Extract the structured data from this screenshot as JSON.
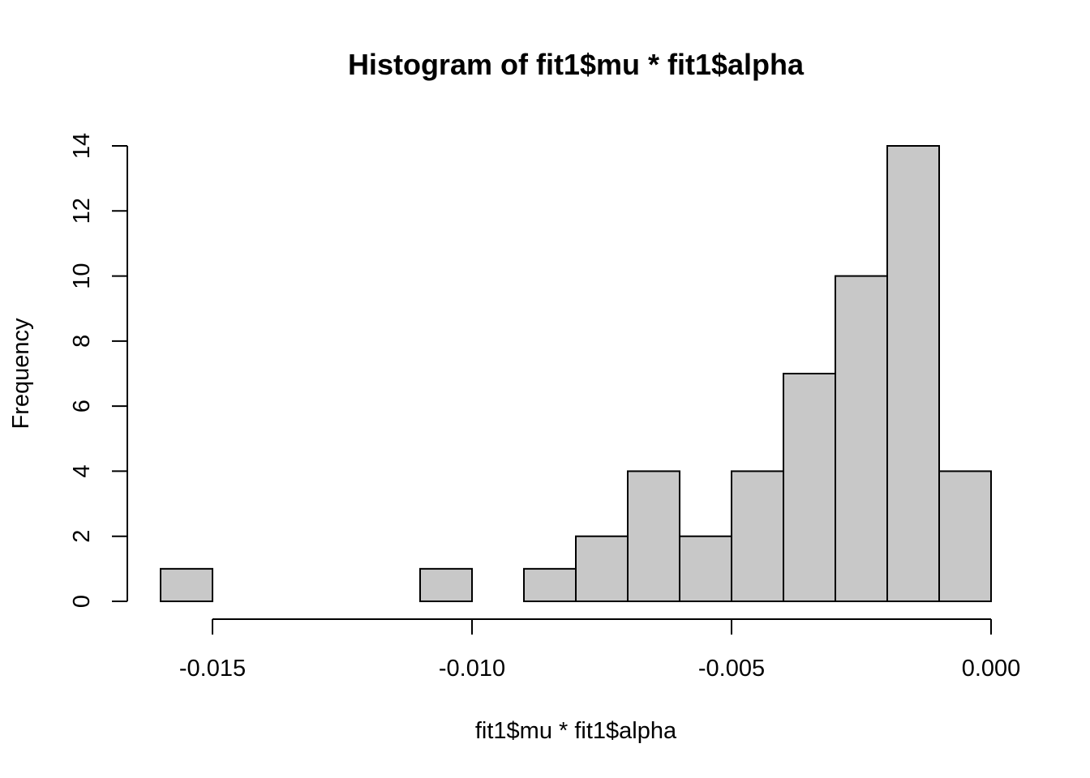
{
  "chart_data": {
    "type": "bar",
    "title": "Histogram of fit1$mu * fit1$alpha",
    "xlabel": "fit1$mu * fit1$alpha",
    "ylabel": "Frequency",
    "bin_edges": [
      -0.016,
      -0.015,
      -0.014,
      -0.013,
      -0.012,
      -0.011,
      -0.01,
      -0.009,
      -0.008,
      -0.007,
      -0.006,
      -0.005,
      -0.004,
      -0.003,
      -0.002,
      -0.001,
      0.0
    ],
    "values": [
      1,
      0,
      0,
      0,
      0,
      1,
      0,
      1,
      2,
      4,
      2,
      4,
      7,
      10,
      14,
      4
    ],
    "x_ticks": [
      -0.015,
      -0.01,
      -0.005,
      0.0
    ],
    "x_tick_labels": [
      "-0.015",
      "-0.010",
      "-0.005",
      "0.000"
    ],
    "y_ticks": [
      0,
      2,
      4,
      6,
      8,
      10,
      12,
      14
    ],
    "y_tick_labels": [
      "0",
      "2",
      "4",
      "6",
      "8",
      "10",
      "12",
      "14"
    ],
    "xlim": [
      -0.016,
      0.0
    ],
    "ylim": [
      0,
      14
    ],
    "bar_color": "#c8c8c8",
    "grid": false,
    "legend": "none"
  }
}
